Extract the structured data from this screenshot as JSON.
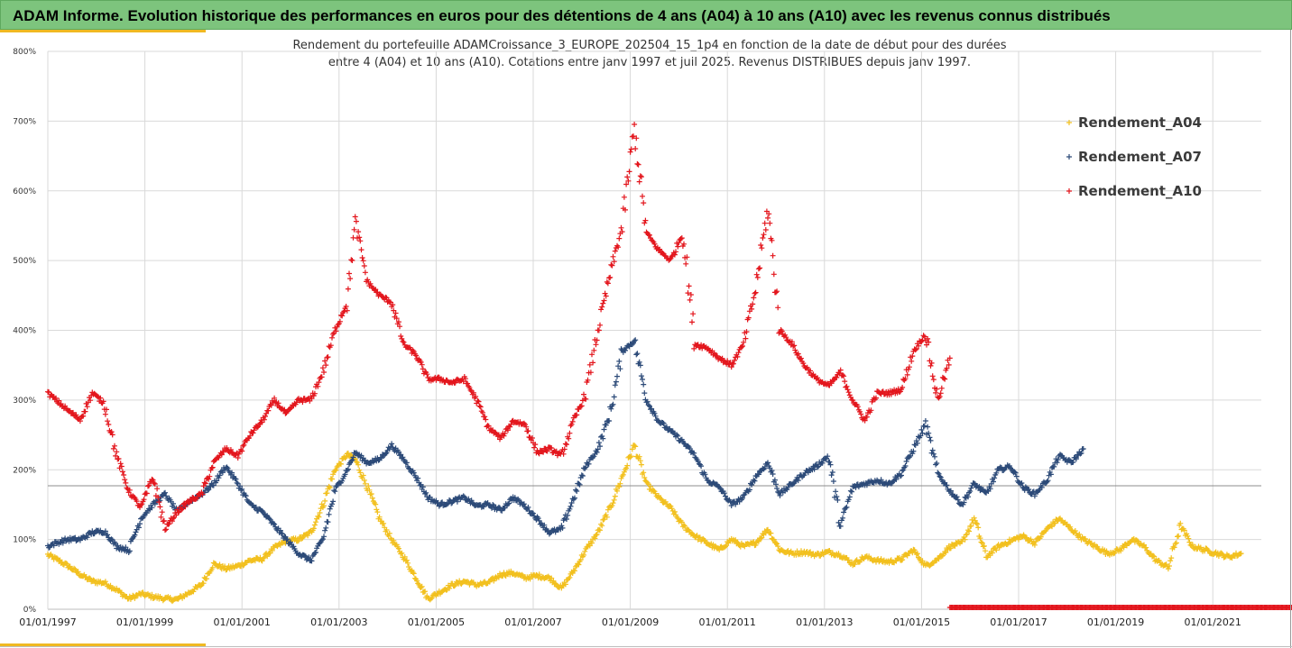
{
  "header": {
    "title": "ADAM Informe. Evolution historique des performances en euros pour des détentions de 4 ans (A04) à 10 ans (A10) avec les revenus connus distribués"
  },
  "chart_data": {
    "type": "scatter",
    "subtitle_line1": "Rendement du portefeuille ADAMCroissance_3_EUROPE_202504_15_1p4  en fonction de la date de début pour des durées",
    "subtitle_line2": "entre 4 (A04) et 10 ans (A10). Cotations entre janv 1997 et juil 2025. Revenus DISTRIBUES depuis janv 1997.",
    "y_tick_labels": [
      "0%",
      "100%",
      "200%",
      "300%",
      "400%",
      "500%",
      "600%",
      "700%",
      "800%"
    ],
    "x_tick_labels": [
      "01/01/1997",
      "01/01/1999",
      "01/01/2001",
      "01/01/2003",
      "01/01/2005",
      "01/01/2007",
      "01/01/2009",
      "01/01/2011",
      "01/01/2013",
      "01/01/2015",
      "01/01/2017",
      "01/01/2019",
      "01/01/2021"
    ],
    "ylim": [
      0,
      800
    ],
    "reference_line_y": 177,
    "grid": true,
    "legend_position": "right",
    "series": [
      {
        "name": "Rendement_A04",
        "color": "#f2c01e",
        "points": [
          [
            "1997-01",
            78
          ],
          [
            "1997-03",
            72
          ],
          [
            "1997-06",
            62
          ],
          [
            "1997-09",
            50
          ],
          [
            "1997-12",
            40
          ],
          [
            "1998-03",
            38
          ],
          [
            "1998-06",
            28
          ],
          [
            "1998-09",
            15
          ],
          [
            "1998-12",
            22
          ],
          [
            "1999-03",
            18
          ],
          [
            "1999-06",
            15
          ],
          [
            "1999-09",
            14
          ],
          [
            "1999-12",
            24
          ],
          [
            "2000-03",
            35
          ],
          [
            "2000-06",
            65
          ],
          [
            "2000-09",
            58
          ],
          [
            "2000-12",
            62
          ],
          [
            "2001-03",
            70
          ],
          [
            "2001-06",
            72
          ],
          [
            "2001-09",
            88
          ],
          [
            "2001-12",
            98
          ],
          [
            "2002-03",
            100
          ],
          [
            "2002-06",
            110
          ],
          [
            "2002-09",
            150
          ],
          [
            "2002-12",
            200
          ],
          [
            "2003-03",
            222
          ],
          [
            "2003-05",
            215
          ],
          [
            "2003-08",
            175
          ],
          [
            "2003-11",
            130
          ],
          [
            "2004-02",
            100
          ],
          [
            "2004-05",
            75
          ],
          [
            "2004-08",
            45
          ],
          [
            "2004-11",
            15
          ],
          [
            "2005-02",
            25
          ],
          [
            "2005-05",
            35
          ],
          [
            "2005-08",
            40
          ],
          [
            "2005-11",
            35
          ],
          [
            "2006-02",
            38
          ],
          [
            "2006-05",
            50
          ],
          [
            "2006-08",
            52
          ],
          [
            "2006-11",
            45
          ],
          [
            "2007-02",
            48
          ],
          [
            "2007-05",
            45
          ],
          [
            "2007-08",
            30
          ],
          [
            "2007-11",
            55
          ],
          [
            "2008-02",
            85
          ],
          [
            "2008-05",
            110
          ],
          [
            "2008-08",
            145
          ],
          [
            "2008-11",
            190
          ],
          [
            "2009-02",
            235
          ],
          [
            "2009-05",
            180
          ],
          [
            "2009-08",
            160
          ],
          [
            "2009-11",
            145
          ],
          [
            "2010-02",
            120
          ],
          [
            "2010-05",
            105
          ],
          [
            "2010-08",
            95
          ],
          [
            "2010-11",
            85
          ],
          [
            "2011-02",
            100
          ],
          [
            "2011-05",
            90
          ],
          [
            "2011-08",
            95
          ],
          [
            "2011-11",
            115
          ],
          [
            "2012-02",
            85
          ],
          [
            "2012-05",
            80
          ],
          [
            "2012-08",
            82
          ],
          [
            "2012-11",
            78
          ],
          [
            "2013-02",
            82
          ],
          [
            "2013-05",
            78
          ],
          [
            "2013-08",
            65
          ],
          [
            "2013-11",
            75
          ],
          [
            "2014-02",
            70
          ],
          [
            "2014-05",
            68
          ],
          [
            "2014-08",
            72
          ],
          [
            "2014-11",
            85
          ],
          [
            "2015-02",
            62
          ],
          [
            "2015-05",
            72
          ],
          [
            "2015-08",
            90
          ],
          [
            "2015-11",
            95
          ],
          [
            "2016-02",
            130
          ],
          [
            "2016-05",
            75
          ],
          [
            "2016-08",
            90
          ],
          [
            "2016-11",
            98
          ],
          [
            "2017-02",
            105
          ],
          [
            "2017-05",
            95
          ],
          [
            "2017-08",
            115
          ],
          [
            "2017-11",
            130
          ],
          [
            "2018-02",
            115
          ],
          [
            "2018-05",
            100
          ],
          [
            "2018-08",
            90
          ],
          [
            "2018-11",
            80
          ],
          [
            "2019-02",
            85
          ],
          [
            "2019-05",
            100
          ],
          [
            "2019-08",
            90
          ],
          [
            "2019-11",
            70
          ],
          [
            "2020-02",
            60
          ],
          [
            "2020-05",
            120
          ],
          [
            "2020-08",
            90
          ],
          [
            "2020-11",
            85
          ],
          [
            "2021-02",
            80
          ],
          [
            "2021-05",
            75
          ],
          [
            "2021-08",
            80
          ]
        ]
      },
      {
        "name": "Rendement_A07",
        "color": "#2c4a78",
        "points": [
          [
            "1997-01",
            90
          ],
          [
            "1997-03",
            95
          ],
          [
            "1997-06",
            100
          ],
          [
            "1997-09",
            100
          ],
          [
            "1997-12",
            110
          ],
          [
            "1998-03",
            112
          ],
          [
            "1998-06",
            90
          ],
          [
            "1998-09",
            85
          ],
          [
            "1998-12",
            130
          ],
          [
            "1999-03",
            150
          ],
          [
            "1999-06",
            165
          ],
          [
            "1999-09",
            140
          ],
          [
            "1999-12",
            155
          ],
          [
            "2000-03",
            165
          ],
          [
            "2000-06",
            180
          ],
          [
            "2000-09",
            205
          ],
          [
            "2000-12",
            180
          ],
          [
            "2001-03",
            150
          ],
          [
            "2001-06",
            140
          ],
          [
            "2001-09",
            120
          ],
          [
            "2001-12",
            100
          ],
          [
            "2002-03",
            80
          ],
          [
            "2002-06",
            70
          ],
          [
            "2002-09",
            100
          ],
          [
            "2002-12",
            170
          ],
          [
            "2003-03",
            200
          ],
          [
            "2003-05",
            225
          ],
          [
            "2003-08",
            210
          ],
          [
            "2003-11",
            215
          ],
          [
            "2004-02",
            235
          ],
          [
            "2004-05",
            215
          ],
          [
            "2004-08",
            190
          ],
          [
            "2004-11",
            160
          ],
          [
            "2005-02",
            150
          ],
          [
            "2005-05",
            155
          ],
          [
            "2005-08",
            160
          ],
          [
            "2005-11",
            148
          ],
          [
            "2006-02",
            150
          ],
          [
            "2006-05",
            142
          ],
          [
            "2006-08",
            160
          ],
          [
            "2006-11",
            148
          ],
          [
            "2007-02",
            130
          ],
          [
            "2007-05",
            110
          ],
          [
            "2007-08",
            115
          ],
          [
            "2007-11",
            160
          ],
          [
            "2008-02",
            205
          ],
          [
            "2008-05",
            230
          ],
          [
            "2008-08",
            280
          ],
          [
            "2008-11",
            370
          ],
          [
            "2009-02",
            385
          ],
          [
            "2009-05",
            300
          ],
          [
            "2009-08",
            270
          ],
          [
            "2009-11",
            255
          ],
          [
            "2010-02",
            240
          ],
          [
            "2010-05",
            220
          ],
          [
            "2010-08",
            185
          ],
          [
            "2010-11",
            175
          ],
          [
            "2011-02",
            150
          ],
          [
            "2011-05",
            160
          ],
          [
            "2011-08",
            190
          ],
          [
            "2011-11",
            210
          ],
          [
            "2012-02",
            165
          ],
          [
            "2012-05",
            180
          ],
          [
            "2012-08",
            195
          ],
          [
            "2012-11",
            205
          ],
          [
            "2013-02",
            220
          ],
          [
            "2013-05",
            120
          ],
          [
            "2013-08",
            175
          ],
          [
            "2013-11",
            180
          ],
          [
            "2014-02",
            185
          ],
          [
            "2014-05",
            180
          ],
          [
            "2014-08",
            195
          ],
          [
            "2014-11",
            230
          ],
          [
            "2015-02",
            265
          ],
          [
            "2015-05",
            195
          ],
          [
            "2015-08",
            170
          ],
          [
            "2015-11",
            150
          ],
          [
            "2016-02",
            180
          ],
          [
            "2016-05",
            165
          ],
          [
            "2016-08",
            200
          ],
          [
            "2016-11",
            205
          ],
          [
            "2017-02",
            175
          ],
          [
            "2017-05",
            165
          ],
          [
            "2017-08",
            185
          ],
          [
            "2017-11",
            220
          ],
          [
            "2018-02",
            210
          ],
          [
            "2018-05",
            230
          ]
        ]
      },
      {
        "name": "Rendement_A10",
        "color": "#e3161d",
        "points": [
          [
            "1997-01",
            310
          ],
          [
            "1997-03",
            300
          ],
          [
            "1997-06",
            285
          ],
          [
            "1997-09",
            272
          ],
          [
            "1997-12",
            310
          ],
          [
            "1998-03",
            295
          ],
          [
            "1998-06",
            220
          ],
          [
            "1998-09",
            170
          ],
          [
            "1998-12",
            145
          ],
          [
            "1999-03",
            190
          ],
          [
            "1999-06",
            115
          ],
          [
            "1999-09",
            140
          ],
          [
            "1999-12",
            155
          ],
          [
            "2000-03",
            165
          ],
          [
            "2000-06",
            210
          ],
          [
            "2000-09",
            230
          ],
          [
            "2000-12",
            220
          ],
          [
            "2001-03",
            250
          ],
          [
            "2001-06",
            270
          ],
          [
            "2001-09",
            300
          ],
          [
            "2001-12",
            280
          ],
          [
            "2002-03",
            300
          ],
          [
            "2002-06",
            300
          ],
          [
            "2002-09",
            340
          ],
          [
            "2002-12",
            400
          ],
          [
            "2003-03",
            440
          ],
          [
            "2003-05",
            555
          ],
          [
            "2003-08",
            470
          ],
          [
            "2003-11",
            450
          ],
          [
            "2004-02",
            440
          ],
          [
            "2004-05",
            380
          ],
          [
            "2004-08",
            365
          ],
          [
            "2004-11",
            330
          ],
          [
            "2005-02",
            330
          ],
          [
            "2005-05",
            325
          ],
          [
            "2005-08",
            330
          ],
          [
            "2005-11",
            300
          ],
          [
            "2006-02",
            260
          ],
          [
            "2006-05",
            245
          ],
          [
            "2006-08",
            270
          ],
          [
            "2006-11",
            265
          ],
          [
            "2007-02",
            225
          ],
          [
            "2007-05",
            230
          ],
          [
            "2007-08",
            220
          ],
          [
            "2007-11",
            270
          ],
          [
            "2008-02",
            310
          ],
          [
            "2008-05",
            400
          ],
          [
            "2008-08",
            480
          ],
          [
            "2008-11",
            550
          ],
          [
            "2009-02",
            690
          ],
          [
            "2009-05",
            540
          ],
          [
            "2009-08",
            515
          ],
          [
            "2009-11",
            500
          ],
          [
            "2010-02",
            540
          ],
          [
            "2010-05",
            380
          ],
          [
            "2010-08",
            375
          ],
          [
            "2010-11",
            360
          ],
          [
            "2011-02",
            350
          ],
          [
            "2011-05",
            380
          ],
          [
            "2011-08",
            460
          ],
          [
            "2011-11",
            575
          ],
          [
            "2012-02",
            400
          ],
          [
            "2012-05",
            380
          ],
          [
            "2012-08",
            350
          ],
          [
            "2012-11",
            330
          ],
          [
            "2013-02",
            320
          ],
          [
            "2013-05",
            340
          ],
          [
            "2013-08",
            300
          ],
          [
            "2013-11",
            270
          ],
          [
            "2014-02",
            310
          ],
          [
            "2014-05",
            310
          ],
          [
            "2014-08",
            315
          ],
          [
            "2014-11",
            370
          ],
          [
            "2015-02",
            395
          ],
          [
            "2015-05",
            300
          ],
          [
            "2015-08",
            360
          ]
        ]
      }
    ],
    "zero_marker_range": [
      "2015-08",
      "2022-11"
    ]
  }
}
